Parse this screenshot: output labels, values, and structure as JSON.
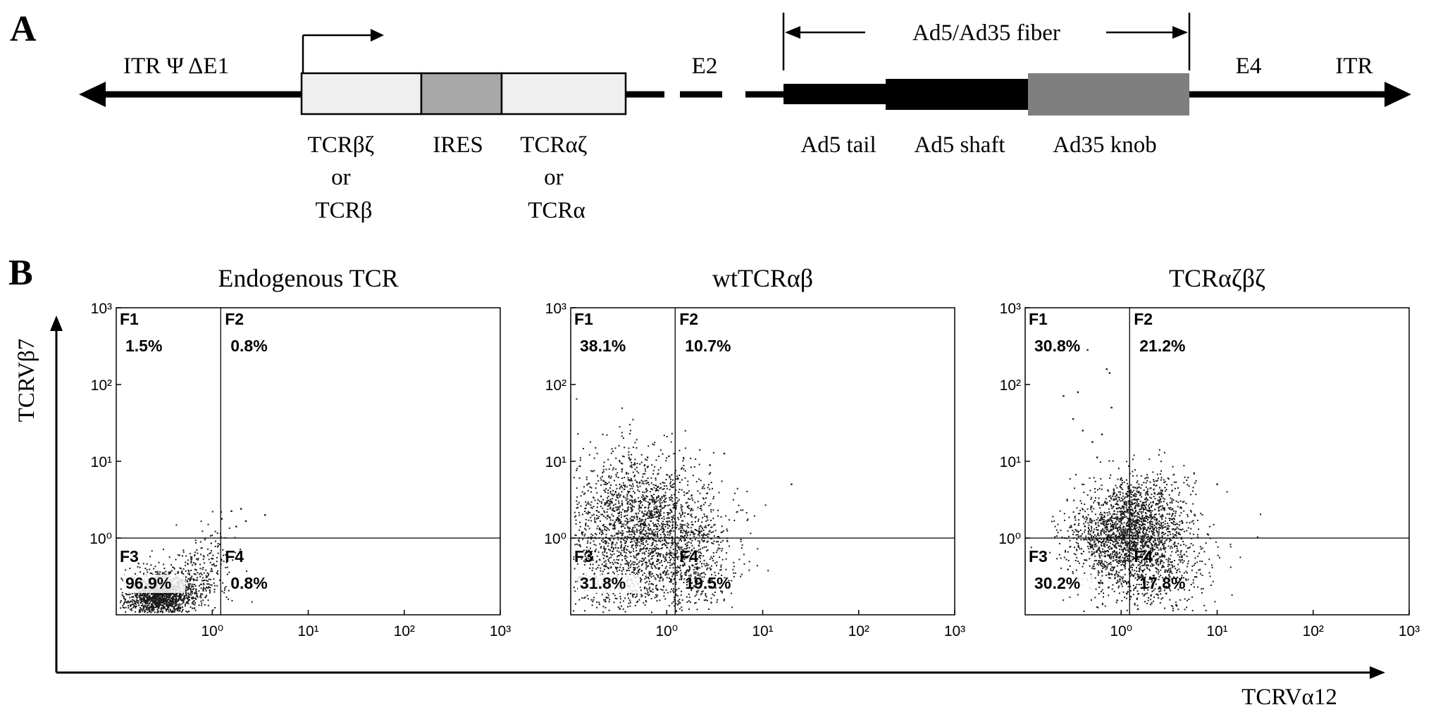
{
  "panel_a": {
    "letter": "A",
    "left_label": "ITR Ψ ΔE1",
    "e2_label": "E2",
    "e4_label": "E4",
    "right_label": "ITR",
    "fiber_label": "Ad5/Ad35 fiber",
    "cassette": [
      {
        "name": "TCRβζ or TCRβ",
        "lines": [
          "TCRβζ",
          "or",
          "TCRβ"
        ],
        "fill": "#efefef"
      },
      {
        "name": "IRES",
        "lines": [
          "IRES"
        ],
        "fill": "#a8a8a8"
      },
      {
        "name": "TCRαζ or TCRα",
        "lines": [
          "TCRαζ",
          "or",
          "TCRα"
        ],
        "fill": "#efefef"
      }
    ],
    "fiber_parts": [
      {
        "name": "Ad5 tail",
        "fill": "#000000"
      },
      {
        "name": "Ad5 shaft",
        "fill": "#000000"
      },
      {
        "name": "Ad35 knob",
        "fill": "#7f7f7f"
      }
    ]
  },
  "panel_b": {
    "letter": "B",
    "y_axis_label": "TCRVβ7",
    "x_axis_label": "TCRVα12",
    "tick_labels": [
      "10⁰",
      "10¹",
      "10²",
      "10³"
    ]
  },
  "chart_data": [
    {
      "type": "scatter",
      "title": "Endogenous TCR",
      "xlabel": "TCRVα12",
      "ylabel": "TCRVβ7",
      "xscale": "log",
      "yscale": "log",
      "xlim": [
        0.1,
        1000
      ],
      "ylim": [
        0.1,
        1000
      ],
      "xticks": [
        "10⁰",
        "10¹",
        "10²",
        "10³"
      ],
      "yticks": [
        "10⁰",
        "10¹",
        "10²",
        "10³"
      ],
      "quadrant_gate": {
        "x": 1.0,
        "y": 1.0
      },
      "quadrants": [
        {
          "label": "F1",
          "percent": "1.5%"
        },
        {
          "label": "F2",
          "percent": "0.8%"
        },
        {
          "label": "F3",
          "percent": "96.9%"
        },
        {
          "label": "F4",
          "percent": "0.8%"
        }
      ]
    },
    {
      "type": "scatter",
      "title": "wtTCRαβ",
      "xlabel": "TCRVα12",
      "ylabel": "TCRVβ7",
      "xscale": "log",
      "yscale": "log",
      "xlim": [
        0.1,
        1000
      ],
      "ylim": [
        0.1,
        1000
      ],
      "xticks": [
        "10⁰",
        "10¹",
        "10²",
        "10³"
      ],
      "yticks": [
        "10⁰",
        "10¹",
        "10²",
        "10³"
      ],
      "quadrant_gate": {
        "x": 1.0,
        "y": 1.0
      },
      "quadrants": [
        {
          "label": "F1",
          "percent": "38.1%"
        },
        {
          "label": "F2",
          "percent": "10.7%"
        },
        {
          "label": "F3",
          "percent": "31.8%"
        },
        {
          "label": "F4",
          "percent": "19.5%"
        }
      ]
    },
    {
      "type": "scatter",
      "title": "TCRαζβζ",
      "xlabel": "TCRVα12",
      "ylabel": "TCRVβ7",
      "xscale": "log",
      "yscale": "log",
      "xlim": [
        0.1,
        1000
      ],
      "ylim": [
        0.1,
        1000
      ],
      "xticks": [
        "10⁰",
        "10¹",
        "10²",
        "10³"
      ],
      "yticks": [
        "10⁰",
        "10¹",
        "10²",
        "10³"
      ],
      "quadrant_gate": {
        "x": 1.0,
        "y": 1.0
      },
      "quadrants": [
        {
          "label": "F1",
          "percent": "30.8%"
        },
        {
          "label": "F2",
          "percent": "21.2%"
        },
        {
          "label": "F3",
          "percent": "30.2%"
        },
        {
          "label": "F4",
          "percent": "17.8%"
        }
      ]
    }
  ]
}
